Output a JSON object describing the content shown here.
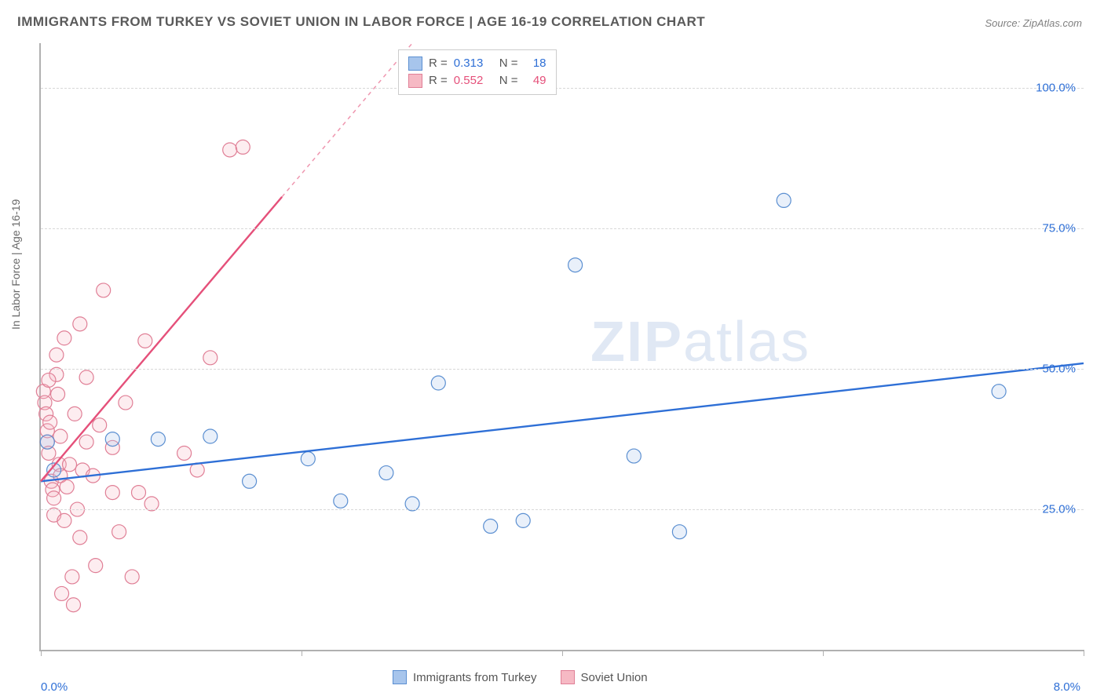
{
  "title": "IMMIGRANTS FROM TURKEY VS SOVIET UNION IN LABOR FORCE | AGE 16-19 CORRELATION CHART",
  "source": "Source: ZipAtlas.com",
  "ylabel": "In Labor Force | Age 16-19",
  "watermark_a": "ZIP",
  "watermark_b": "atlas",
  "chart": {
    "type": "scatter",
    "background_color": "#ffffff",
    "grid_color": "#d8d8d8",
    "axis_color": "#b0b0b0",
    "xlim": [
      0.0,
      8.0
    ],
    "ylim": [
      0.0,
      108.0
    ],
    "x_left_label": "0.0%",
    "x_right_label": "8.0%",
    "x_label_color": "#2e6fd6",
    "xtick_positions": [
      0,
      2,
      4,
      6,
      8
    ],
    "yticks": [
      {
        "v": 25.0,
        "label": "25.0%"
      },
      {
        "v": 50.0,
        "label": "50.0%"
      },
      {
        "v": 75.0,
        "label": "75.0%"
      },
      {
        "v": 100.0,
        "label": "100.0%"
      }
    ],
    "ytick_label_color": "#2e6fd6",
    "marker_radius": 9,
    "marker_stroke_width": 1.2,
    "marker_fill_opacity": 0.25,
    "trend_line_width": 2.4,
    "legend_series": [
      {
        "label": "Immigrants from Turkey",
        "fill": "#a7c5ec",
        "stroke": "#5b8fd1"
      },
      {
        "label": "Soviet Union",
        "fill": "#f6b9c4",
        "stroke": "#e07f96"
      }
    ],
    "stat_legend": [
      {
        "fill": "#a7c5ec",
        "stroke": "#5b8fd1",
        "r_label": "R =",
        "r": "0.313",
        "n_label": "N =",
        "n": "18",
        "value_color": "#2e6fd6",
        "label_color": "#555555"
      },
      {
        "fill": "#f6b9c4",
        "stroke": "#e07f96",
        "r_label": "R =",
        "r": "0.552",
        "n_label": "N =",
        "n": "49",
        "value_color": "#e5507a",
        "label_color": "#555555"
      }
    ],
    "series": [
      {
        "name": "turkey",
        "color_fill": "#a7c5ec",
        "color_stroke": "#5b8fd1",
        "trend_color": "#2e6fd6",
        "trend": {
          "x1": 0.0,
          "y1": 30.0,
          "x2": 8.0,
          "y2": 51.0,
          "dash_from_x": null
        },
        "points": [
          [
            0.05,
            37.0
          ],
          [
            0.55,
            37.5
          ],
          [
            0.9,
            37.5
          ],
          [
            1.3,
            38.0
          ],
          [
            1.6,
            30.0
          ],
          [
            2.05,
            34.0
          ],
          [
            2.3,
            26.5
          ],
          [
            2.65,
            31.5
          ],
          [
            2.85,
            26.0
          ],
          [
            3.05,
            47.5
          ],
          [
            3.45,
            22.0
          ],
          [
            3.7,
            23.0
          ],
          [
            4.1,
            68.5
          ],
          [
            4.55,
            34.5
          ],
          [
            4.9,
            21.0
          ],
          [
            5.7,
            80.0
          ],
          [
            7.35,
            46.0
          ],
          [
            0.1,
            32.0
          ]
        ]
      },
      {
        "name": "soviet",
        "color_fill": "#f6b9c4",
        "color_stroke": "#e07f96",
        "trend_color": "#e5507a",
        "trend": {
          "x1": 0.0,
          "y1": 30.0,
          "x2": 2.85,
          "y2": 108.0,
          "dash_from_x": 1.85
        },
        "points": [
          [
            0.02,
            46.0
          ],
          [
            0.03,
            44.0
          ],
          [
            0.04,
            42.0
          ],
          [
            0.05,
            39.0
          ],
          [
            0.05,
            37.0
          ],
          [
            0.06,
            35.0
          ],
          [
            0.07,
            40.5
          ],
          [
            0.08,
            30.0
          ],
          [
            0.09,
            28.5
          ],
          [
            0.1,
            27.0
          ],
          [
            0.1,
            24.0
          ],
          [
            0.12,
            52.5
          ],
          [
            0.12,
            49.0
          ],
          [
            0.13,
            45.5
          ],
          [
            0.14,
            33.0
          ],
          [
            0.15,
            31.0
          ],
          [
            0.15,
            38.0
          ],
          [
            0.16,
            10.0
          ],
          [
            0.18,
            23.0
          ],
          [
            0.18,
            55.5
          ],
          [
            0.2,
            29.0
          ],
          [
            0.22,
            33.0
          ],
          [
            0.24,
            13.0
          ],
          [
            0.25,
            8.0
          ],
          [
            0.26,
            42.0
          ],
          [
            0.28,
            25.0
          ],
          [
            0.3,
            20.0
          ],
          [
            0.32,
            32.0
          ],
          [
            0.35,
            48.5
          ],
          [
            0.35,
            37.0
          ],
          [
            0.4,
            31.0
          ],
          [
            0.42,
            15.0
          ],
          [
            0.45,
            40.0
          ],
          [
            0.48,
            64.0
          ],
          [
            0.55,
            28.0
          ],
          [
            0.55,
            36.0
          ],
          [
            0.6,
            21.0
          ],
          [
            0.65,
            44.0
          ],
          [
            0.7,
            13.0
          ],
          [
            0.75,
            28.0
          ],
          [
            0.8,
            55.0
          ],
          [
            0.85,
            26.0
          ],
          [
            1.1,
            35.0
          ],
          [
            1.2,
            32.0
          ],
          [
            1.3,
            52.0
          ],
          [
            1.45,
            89.0
          ],
          [
            1.55,
            89.5
          ],
          [
            0.3,
            58.0
          ],
          [
            0.06,
            48.0
          ]
        ]
      }
    ]
  }
}
